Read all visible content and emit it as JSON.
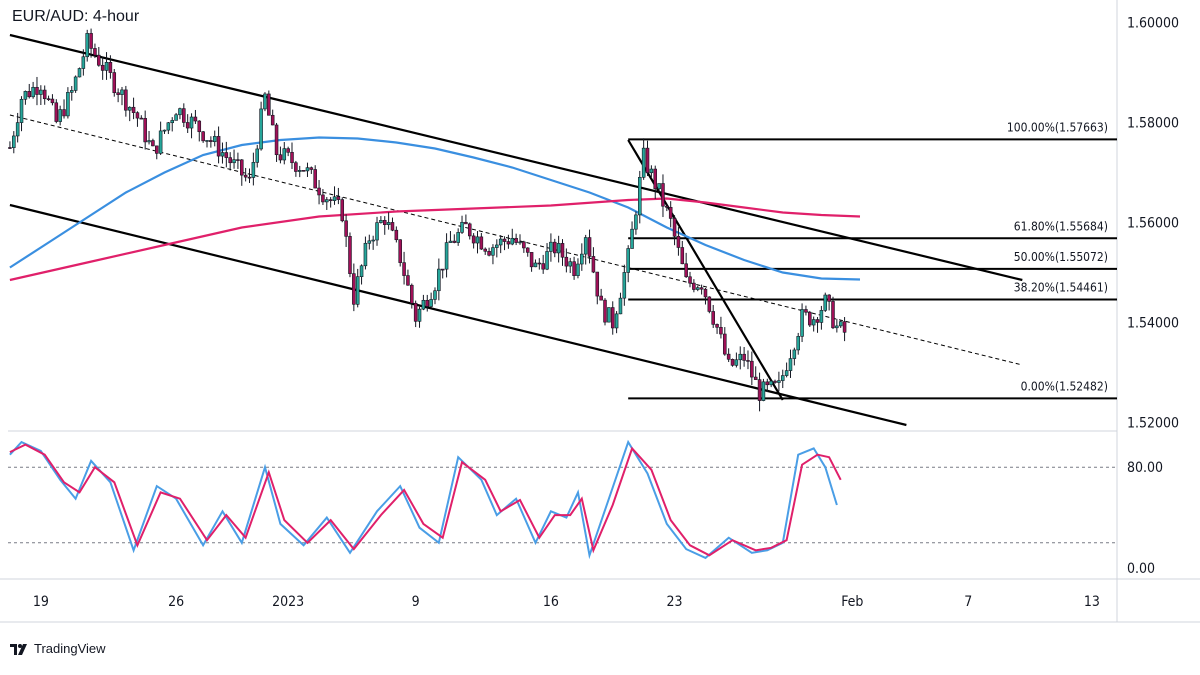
{
  "header": {
    "title": "EUR/AUD: 4-hour"
  },
  "brand": {
    "name": "TradingView",
    "logo_icon": "tradingview-logo-icon"
  },
  "colors": {
    "bull": "#26a69a",
    "bear": "#a01057",
    "ma_fast": "#3a8fe0",
    "ma_slow": "#e0206a",
    "stoch_k": "#4a9ee6",
    "stoch_d": "#e0206a",
    "lines": "#000000"
  },
  "chart_data": [
    {
      "type": "candlestick",
      "title": "EUR/AUD: 4-hour",
      "ylim": [
        1.5185,
        1.6045
      ],
      "y_ticks": [
        "1.60000",
        "1.58000",
        "1.56000",
        "1.54000",
        "1.52000"
      ],
      "y_tick_values": [
        1.6,
        1.58,
        1.56,
        1.54,
        1.52
      ],
      "x_ticks": [
        "19",
        "26",
        "2023",
        "9",
        "16",
        "23",
        "Feb",
        "7",
        "13"
      ],
      "x_tick_index": [
        8,
        43,
        72,
        105,
        140,
        172,
        218,
        248,
        280
      ],
      "bar_count": 287,
      "ohlc_key_closes": [
        [
          0,
          1.575
        ],
        [
          3,
          1.585
        ],
        [
          8,
          1.588
        ],
        [
          12,
          1.58
        ],
        [
          16,
          1.586
        ],
        [
          20,
          1.596
        ],
        [
          26,
          1.589
        ],
        [
          33,
          1.581
        ],
        [
          37,
          1.574
        ],
        [
          43,
          1.583
        ],
        [
          50,
          1.578
        ],
        [
          55,
          1.574
        ],
        [
          62,
          1.568
        ],
        [
          66,
          1.585
        ],
        [
          69,
          1.574
        ],
        [
          76,
          1.571
        ],
        [
          81,
          1.566
        ],
        [
          86,
          1.562
        ],
        [
          89,
          1.545
        ],
        [
          93,
          1.557
        ],
        [
          97,
          1.561
        ],
        [
          101,
          1.553
        ],
        [
          105,
          1.541
        ],
        [
          110,
          1.548
        ],
        [
          114,
          1.556
        ],
        [
          118,
          1.559
        ],
        [
          124,
          1.555
        ],
        [
          130,
          1.557
        ],
        [
          136,
          1.551
        ],
        [
          141,
          1.555
        ],
        [
          146,
          1.551
        ],
        [
          149,
          1.558
        ],
        [
          153,
          1.543
        ],
        [
          156,
          1.54
        ],
        [
          160,
          1.553
        ],
        [
          164,
          1.573
        ],
        [
          168,
          1.566
        ],
        [
          171,
          1.56
        ],
        [
          175,
          1.548
        ],
        [
          179,
          1.548
        ],
        [
          183,
          1.539
        ],
        [
          186,
          1.531
        ],
        [
          190,
          1.533
        ],
        [
          194,
          1.526
        ],
        [
          199,
          1.527
        ],
        [
          201,
          1.532
        ],
        [
          205,
          1.541
        ],
        [
          208,
          1.541
        ],
        [
          211,
          1.544
        ],
        [
          214,
          1.539
        ],
        [
          216,
          1.538
        ]
      ],
      "series": [
        {
          "name": "",
          "kind": "moving-average-fast",
          "points": [
            [
              0,
              1.551
            ],
            [
              10,
              1.556
            ],
            [
              20,
              1.561
            ],
            [
              30,
              1.566
            ],
            [
              40,
              1.57
            ],
            [
              50,
              1.5735
            ],
            [
              60,
              1.5755
            ],
            [
              70,
              1.5765
            ],
            [
              80,
              1.577
            ],
            [
              90,
              1.5768
            ],
            [
              100,
              1.576
            ],
            [
              110,
              1.5748
            ],
            [
              120,
              1.573
            ],
            [
              130,
              1.571
            ],
            [
              140,
              1.5685
            ],
            [
              150,
              1.566
            ],
            [
              160,
              1.563
            ],
            [
              170,
              1.559
            ],
            [
              180,
              1.5555
            ],
            [
              190,
              1.5525
            ],
            [
              200,
              1.55
            ],
            [
              210,
              1.5488
            ],
            [
              220,
              1.5486
            ]
          ]
        },
        {
          "name": "",
          "kind": "moving-average-slow",
          "points": [
            [
              0,
              1.5485
            ],
            [
              20,
              1.552
            ],
            [
              40,
              1.5555
            ],
            [
              60,
              1.559
            ],
            [
              80,
              1.5612
            ],
            [
              100,
              1.5622
            ],
            [
              120,
              1.5628
            ],
            [
              140,
              1.5634
            ],
            [
              160,
              1.5645
            ],
            [
              170,
              1.5648
            ],
            [
              180,
              1.564
            ],
            [
              190,
              1.563
            ],
            [
              200,
              1.562
            ],
            [
              210,
              1.5615
            ],
            [
              220,
              1.5612
            ]
          ]
        }
      ],
      "trendlines": [
        {
          "name": "upper-channel",
          "from": [
            0,
            1.5975
          ],
          "to": [
            262,
            1.5485
          ]
        },
        {
          "name": "mid-channel-dashed",
          "from": [
            0,
            1.5815
          ],
          "to": [
            262,
            1.5315
          ]
        },
        {
          "name": "lower-channel",
          "from": [
            0,
            1.5635
          ],
          "to": [
            232,
            1.5195
          ]
        },
        {
          "name": "steep-trendline",
          "from": [
            160,
            1.5765
          ],
          "to": [
            200,
            1.5245
          ]
        }
      ],
      "fibonacci": {
        "x_start_index": 160,
        "levels": [
          {
            "label": "100.00%(1.57663)",
            "value": 1.57663
          },
          {
            "label": "61.80%(1.55684)",
            "value": 1.55684
          },
          {
            "label": "50.00%(1.55072)",
            "value": 1.55072
          },
          {
            "label": "38.20%(1.54461)",
            "value": 1.54461
          },
          {
            "label": "0.00%(1.52482)",
            "value": 1.52482
          }
        ]
      }
    },
    {
      "type": "line",
      "title": "",
      "ylim": [
        -8,
        108
      ],
      "y_ticks": [
        "80.00",
        "0.00"
      ],
      "y_tick_values": [
        80,
        0
      ],
      "levels": [
        80,
        20
      ],
      "series": [
        {
          "name": "",
          "kind": "stochastic-k",
          "points": [
            [
              0,
              90
            ],
            [
              3,
              100
            ],
            [
              8,
              93
            ],
            [
              13,
              70
            ],
            [
              17,
              55
            ],
            [
              21,
              85
            ],
            [
              26,
              68
            ],
            [
              32,
              14
            ],
            [
              38,
              65
            ],
            [
              43,
              55
            ],
            [
              50,
              18
            ],
            [
              55,
              45
            ],
            [
              60,
              20
            ],
            [
              66,
              80
            ],
            [
              70,
              35
            ],
            [
              76,
              18
            ],
            [
              82,
              40
            ],
            [
              88,
              12
            ],
            [
              95,
              45
            ],
            [
              101,
              65
            ],
            [
              106,
              32
            ],
            [
              111,
              20
            ],
            [
              116,
              88
            ],
            [
              122,
              70
            ],
            [
              126,
              42
            ],
            [
              131,
              55
            ],
            [
              136,
              20
            ],
            [
              140,
              45
            ],
            [
              144,
              40
            ],
            [
              147,
              60
            ],
            [
              150,
              10
            ],
            [
              155,
              55
            ],
            [
              160,
              100
            ],
            [
              165,
              75
            ],
            [
              170,
              35
            ],
            [
              175,
              15
            ],
            [
              180,
              8
            ],
            [
              186,
              24
            ],
            [
              192,
              12
            ],
            [
              196,
              14
            ],
            [
              200,
              20
            ],
            [
              204,
              90
            ],
            [
              208,
              95
            ],
            [
              211,
              80
            ],
            [
              214,
              50
            ]
          ]
        },
        {
          "name": "",
          "kind": "stochastic-d",
          "points": [
            [
              0,
              92
            ],
            [
              4,
              98
            ],
            [
              9,
              90
            ],
            [
              14,
              68
            ],
            [
              18,
              60
            ],
            [
              22,
              80
            ],
            [
              27,
              68
            ],
            [
              33,
              18
            ],
            [
              39,
              60
            ],
            [
              44,
              55
            ],
            [
              51,
              22
            ],
            [
              56,
              42
            ],
            [
              61,
              24
            ],
            [
              67,
              76
            ],
            [
              71,
              38
            ],
            [
              77,
              20
            ],
            [
              83,
              38
            ],
            [
              89,
              15
            ],
            [
              96,
              42
            ],
            [
              102,
              62
            ],
            [
              107,
              35
            ],
            [
              112,
              24
            ],
            [
              117,
              84
            ],
            [
              123,
              70
            ],
            [
              127,
              45
            ],
            [
              132,
              54
            ],
            [
              137,
              24
            ],
            [
              141,
              42
            ],
            [
              145,
              42
            ],
            [
              148,
              55
            ],
            [
              151,
              14
            ],
            [
              156,
              50
            ],
            [
              161,
              95
            ],
            [
              166,
              78
            ],
            [
              171,
              38
            ],
            [
              176,
              18
            ],
            [
              181,
              10
            ],
            [
              187,
              22
            ],
            [
              193,
              14
            ],
            [
              197,
              16
            ],
            [
              201,
              22
            ],
            [
              205,
              82
            ],
            [
              209,
              90
            ],
            [
              212,
              88
            ],
            [
              215,
              70
            ]
          ]
        }
      ]
    }
  ]
}
